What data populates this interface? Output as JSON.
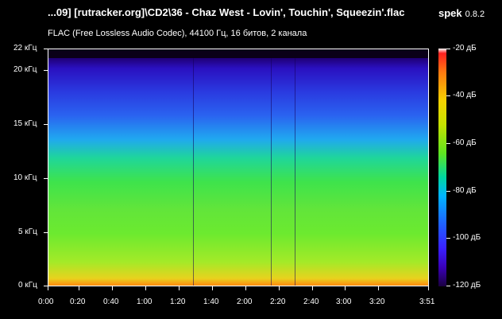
{
  "header": {
    "title": "...09] [rutracker.org]\\CD2\\36 - Chaz West - Lovin', Touchin', Squeezin'.flac",
    "app_name": "spek",
    "app_version": "0.8.2",
    "file_info": "FLAC (Free Lossless Audio Codec), 44100 Гц, 16 битов, 2 канала"
  },
  "spectrogram": {
    "y_ticks": [
      "22 кГц",
      "20 кГц",
      "15 кГц",
      "10 кГц",
      "5 кГц",
      "0 кГц"
    ],
    "x_ticks": [
      "0:00",
      "0:20",
      "0:40",
      "1:00",
      "1:20",
      "1:40",
      "2:00",
      "2:20",
      "2:40",
      "3:00",
      "3:20",
      "3:51"
    ],
    "colorbar_ticks": [
      "-20 дБ",
      "-40 дБ",
      "-60 дБ",
      "-80 дБ",
      "-100 дБ",
      "-120 дБ"
    ]
  }
}
